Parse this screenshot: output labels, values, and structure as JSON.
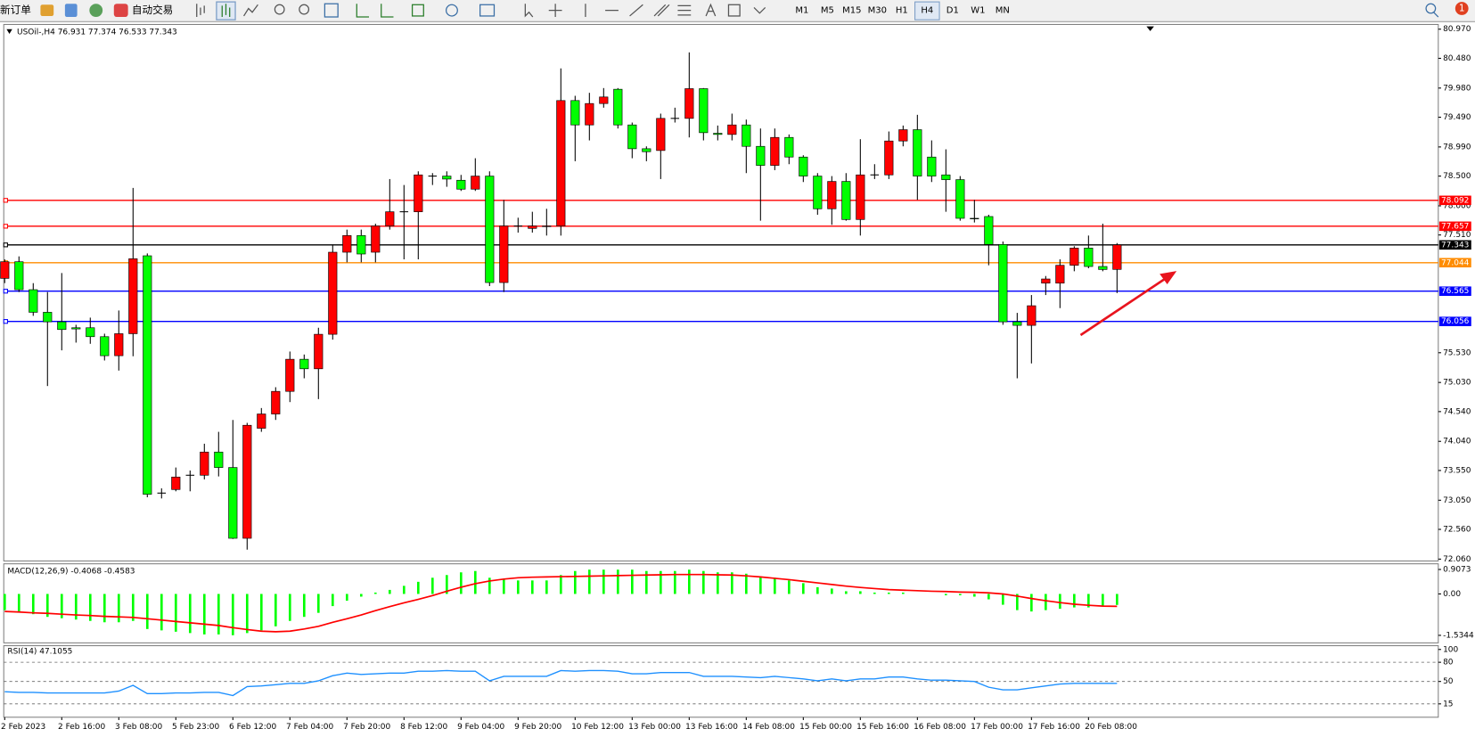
{
  "toolbar": {
    "new_order": "新订单",
    "auto_trading": "自动交易",
    "timeframes": [
      "M1",
      "M5",
      "M15",
      "M30",
      "H1",
      "H4",
      "D1",
      "W1",
      "MN"
    ],
    "active_timeframe": "H4",
    "notifications": "1"
  },
  "chart_data": [
    {
      "type": "candlestick",
      "title": "USOil-,H4 76.931 77.374 76.533 77.343",
      "categories": [
        "2 Feb 2023",
        null,
        null,
        null,
        "2 Feb 16:00",
        null,
        null,
        null,
        "3 Feb 08:00",
        null,
        null,
        null,
        "5 Feb 23:00",
        null,
        null,
        null,
        "6 Feb 12:00",
        null,
        null,
        null,
        "7 Feb 04:00",
        null,
        null,
        null,
        "7 Feb 20:00",
        null,
        null,
        null,
        "8 Feb 12:00",
        null,
        null,
        null,
        "9 Feb 04:00",
        null,
        null,
        null,
        "9 Feb 20:00",
        null,
        null,
        null,
        "10 Feb 12:00",
        null,
        null,
        null,
        "13 Feb 00:00",
        null,
        null,
        null,
        "13 Feb 16:00",
        null,
        null,
        null,
        "14 Feb 08:00",
        null,
        null,
        null,
        "15 Feb 00:00",
        null,
        null,
        null,
        "15 Feb 16:00",
        null,
        null,
        null,
        "16 Feb 08:00",
        null,
        null,
        null,
        "17 Feb 00:00",
        null,
        null,
        null,
        "17 Feb 16:00",
        null,
        null,
        null,
        "20 Feb 08:00",
        null,
        null
      ],
      "open": [
        76.78,
        77.06,
        76.59,
        76.21,
        76.05,
        75.95,
        75.95,
        75.8,
        75.48,
        75.85,
        77.16,
        73.17,
        73.23,
        73.47,
        73.47,
        73.86,
        73.6,
        72.41,
        74.26,
        74.5,
        74.88,
        75.42,
        75.26,
        75.84,
        77.22,
        77.5,
        77.22,
        77.66,
        77.9,
        77.9,
        78.5,
        78.5,
        78.43,
        78.28,
        78.5,
        76.71,
        77.66,
        77.62,
        77.65,
        77.66,
        79.77,
        79.36,
        79.72,
        79.96,
        79.36,
        78.96,
        78.93,
        79.47,
        79.47,
        79.97,
        79.22,
        79.2,
        79.36,
        79.0,
        78.68,
        79.15,
        78.82,
        78.5,
        77.95,
        78.41,
        77.77,
        78.52,
        78.52,
        79.09,
        79.28,
        78.82,
        78.52,
        78.44,
        77.79,
        77.82,
        77.35,
        76.05,
        75.99,
        76.7,
        76.7,
        77.0,
        77.29,
        76.98,
        76.931
      ],
      "high": [
        77.1,
        77.15,
        76.7,
        76.55,
        76.87,
        76.0,
        76.12,
        75.85,
        76.24,
        78.3,
        77.2,
        73.25,
        73.6,
        73.55,
        74.0,
        74.2,
        74.4,
        74.35,
        74.6,
        74.95,
        75.55,
        75.5,
        75.95,
        77.35,
        77.6,
        77.6,
        77.7,
        78.45,
        78.35,
        78.58,
        78.55,
        78.58,
        78.52,
        78.8,
        78.58,
        78.1,
        77.8,
        77.9,
        77.95,
        80.31,
        79.85,
        79.9,
        79.98,
        79.98,
        79.4,
        79.0,
        79.55,
        79.65,
        80.58,
        79.98,
        79.35,
        79.55,
        79.45,
        79.3,
        79.3,
        79.2,
        78.85,
        78.55,
        78.5,
        78.55,
        79.12,
        78.7,
        79.25,
        79.35,
        79.53,
        79.1,
        78.95,
        78.5,
        78.1,
        77.85,
        77.4,
        76.2,
        76.5,
        76.82,
        77.1,
        77.32,
        77.5,
        77.7,
        77.374
      ],
      "low": [
        76.7,
        76.55,
        76.15,
        74.97,
        75.57,
        75.7,
        75.68,
        75.4,
        75.23,
        75.47,
        73.1,
        73.08,
        73.2,
        73.2,
        73.4,
        73.45,
        72.4,
        72.22,
        74.2,
        74.4,
        74.7,
        75.1,
        74.75,
        75.75,
        77.05,
        77.05,
        77.05,
        77.6,
        77.1,
        77.1,
        78.35,
        78.32,
        78.25,
        78.25,
        76.65,
        76.55,
        77.55,
        77.55,
        77.5,
        77.5,
        78.75,
        79.1,
        79.65,
        79.3,
        78.8,
        78.75,
        78.45,
        79.4,
        79.15,
        79.1,
        79.1,
        79.1,
        78.55,
        77.75,
        78.6,
        78.7,
        78.4,
        77.85,
        77.68,
        77.75,
        77.5,
        78.45,
        78.45,
        79.0,
        78.1,
        78.4,
        77.9,
        77.75,
        77.72,
        77.0,
        76.0,
        75.1,
        75.35,
        76.5,
        76.28,
        76.9,
        76.95,
        76.9,
        76.533
      ],
      "close": [
        77.06,
        76.59,
        76.21,
        76.05,
        75.92,
        75.93,
        75.8,
        75.48,
        75.85,
        77.11,
        73.15,
        73.17,
        73.44,
        73.47,
        73.86,
        73.6,
        72.41,
        74.31,
        74.5,
        74.88,
        75.42,
        75.26,
        75.84,
        77.22,
        77.5,
        77.19,
        77.66,
        77.9,
        77.9,
        78.52,
        78.5,
        78.45,
        78.28,
        78.5,
        76.71,
        77.66,
        77.66,
        77.66,
        77.66,
        79.77,
        79.36,
        79.72,
        79.83,
        79.36,
        78.96,
        78.91,
        79.47,
        79.47,
        79.97,
        79.23,
        79.2,
        79.36,
        79.0,
        78.68,
        79.15,
        78.82,
        78.5,
        77.95,
        78.41,
        77.77,
        78.52,
        78.52,
        79.09,
        79.28,
        78.5,
        78.5,
        78.44,
        77.79,
        77.78,
        77.35,
        76.05,
        75.99,
        76.32,
        76.77,
        77.0,
        77.29,
        76.98,
        76.93,
        77.343
      ],
      "up_color": "#ff0000",
      "down_color": "#00ff00",
      "ylim": [
        72.06,
        80.97
      ],
      "yticks": [
        {
          "value": 80.97,
          "label": "80.970"
        },
        {
          "value": 80.48,
          "label": "80.480"
        },
        {
          "value": 79.98,
          "label": "79.980"
        },
        {
          "value": 79.49,
          "label": "79.490"
        },
        {
          "value": 78.99,
          "label": "78.990"
        },
        {
          "value": 78.5,
          "label": "78.500"
        },
        {
          "value": 78,
          "label": "78.000"
        },
        {
          "value": 77.51,
          "label": "77.510"
        },
        {
          "value": 75.53,
          "label": "75.530"
        },
        {
          "value": 75.03,
          "label": "75.030"
        },
        {
          "value": 74.54,
          "label": "74.540"
        },
        {
          "value": 74.04,
          "label": "74.040"
        },
        {
          "value": 73.55,
          "label": "73.550"
        },
        {
          "value": 73.05,
          "label": "73.050"
        },
        {
          "value": 72.56,
          "label": "72.560"
        },
        {
          "value": 72.06,
          "label": "72.060"
        }
      ],
      "hlines": [
        {
          "value": 78.092,
          "color": "#ff0000"
        },
        {
          "value": 77.657,
          "color": "#ff0000"
        },
        {
          "value": 77.343,
          "color": "#000000"
        },
        {
          "value": 77.044,
          "color": "#ff8c00"
        },
        {
          "value": 76.565,
          "color": "#0000ff"
        },
        {
          "value": 76.056,
          "color": "#0000ff"
        }
      ]
    },
    {
      "type": "macd",
      "title": "MACD(12,26,9) -0.4068 -0.4583",
      "histogram": [
        -0.6,
        -0.65,
        -0.75,
        -0.85,
        -0.9,
        -0.95,
        -1.0,
        -1.05,
        -1.05,
        -1.0,
        -1.3,
        -1.35,
        -1.4,
        -1.45,
        -1.5,
        -1.5,
        -1.53,
        -1.45,
        -1.35,
        -1.2,
        -1.0,
        -0.85,
        -0.7,
        -0.45,
        -0.25,
        -0.1,
        0.05,
        0.15,
        0.3,
        0.45,
        0.6,
        0.7,
        0.8,
        0.85,
        0.6,
        0.55,
        0.5,
        0.5,
        0.5,
        0.7,
        0.85,
        0.9,
        0.9,
        0.9,
        0.9,
        0.85,
        0.85,
        0.85,
        0.9,
        0.85,
        0.8,
        0.8,
        0.75,
        0.65,
        0.6,
        0.5,
        0.4,
        0.25,
        0.2,
        0.1,
        0.1,
        0.05,
        0.05,
        0.05,
        0.0,
        0.0,
        -0.05,
        -0.05,
        -0.1,
        -0.2,
        -0.4,
        -0.6,
        -0.65,
        -0.6,
        -0.55,
        -0.5,
        -0.5,
        -0.45,
        -0.4068
      ],
      "signal": [
        -0.65,
        -0.67,
        -0.7,
        -0.72,
        -0.75,
        -0.78,
        -0.8,
        -0.83,
        -0.85,
        -0.87,
        -0.92,
        -0.97,
        -1.02,
        -1.07,
        -1.12,
        -1.17,
        -1.25,
        -1.32,
        -1.38,
        -1.4,
        -1.38,
        -1.3,
        -1.2,
        -1.05,
        -0.92,
        -0.78,
        -0.62,
        -0.47,
        -0.33,
        -0.2,
        -0.06,
        0.1,
        0.25,
        0.38,
        0.48,
        0.55,
        0.6,
        0.62,
        0.63,
        0.64,
        0.65,
        0.66,
        0.67,
        0.68,
        0.69,
        0.7,
        0.71,
        0.72,
        0.72,
        0.72,
        0.71,
        0.7,
        0.67,
        0.63,
        0.58,
        0.53,
        0.47,
        0.41,
        0.35,
        0.29,
        0.24,
        0.2,
        0.16,
        0.14,
        0.12,
        0.1,
        0.09,
        0.07,
        0.06,
        0.04,
        0.0,
        -0.08,
        -0.17,
        -0.25,
        -0.32,
        -0.38,
        -0.42,
        -0.45,
        -0.4583
      ],
      "histogram_color": "#00ff00",
      "signal_color": "#ff0000",
      "ylim": [
        -1.5344,
        0.9073
      ],
      "yticks": [
        0.9073,
        {
          "value": 0,
          "label": "0.00"
        },
        -1.5344
      ]
    },
    {
      "type": "line",
      "title": "RSI(14) 47.1055",
      "values": [
        34,
        33,
        33,
        32,
        32,
        32,
        32,
        32,
        35,
        44,
        31,
        31,
        32,
        32,
        33,
        33,
        28,
        42,
        43,
        45,
        47,
        47,
        51,
        59,
        63,
        61,
        62,
        63,
        63,
        66,
        66,
        67,
        66,
        66,
        51,
        58,
        58,
        58,
        58,
        67,
        66,
        67,
        67,
        66,
        62,
        62,
        64,
        64,
        64,
        58,
        58,
        58,
        57,
        56,
        58,
        56,
        54,
        51,
        54,
        51,
        54,
        54,
        57,
        57,
        54,
        52,
        52,
        51,
        50,
        41,
        37,
        37,
        40,
        43,
        46,
        47,
        47,
        47,
        47.1055
      ],
      "color": "#1e90ff",
      "ylim": [
        0,
        100
      ],
      "yticks": [
        100,
        80,
        50,
        15
      ],
      "levels": [
        80,
        50,
        15
      ]
    }
  ]
}
